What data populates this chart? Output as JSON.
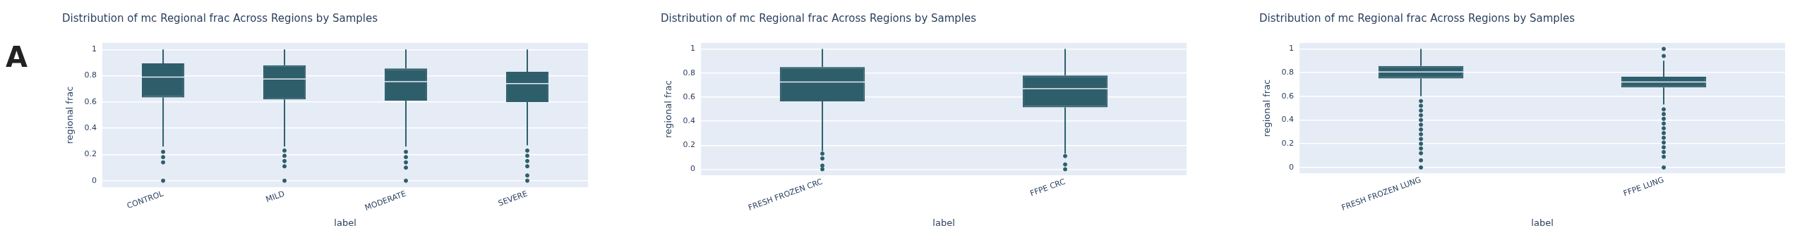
{
  "chart_data": [
    {
      "type": "box",
      "title": "Distribution of mc Regional frac Across Regions by Samples",
      "xlabel": "label",
      "ylabel": "regional frac",
      "annotations": [
        "A"
      ],
      "color": "#2f5e6b",
      "grid": "y",
      "ylim": [
        -0.05,
        1.05
      ],
      "yticks": [
        0,
        0.2,
        0.4,
        0.6,
        0.8,
        1
      ],
      "categories": [
        "CONTROL",
        "MILD",
        "MODERATE",
        "SEVERE"
      ],
      "boxes": [
        {
          "low": 0.26,
          "q1": 0.635,
          "median": 0.79,
          "q3": 0.895,
          "high": 1,
          "outliers": [
            0.22,
            0.18,
            0.14,
            0
          ]
        },
        {
          "low": 0.26,
          "q1": 0.62,
          "median": 0.775,
          "q3": 0.88,
          "high": 1,
          "outliers": [
            0.23,
            0.19,
            0.15,
            0.11,
            0
          ]
        },
        {
          "low": 0.26,
          "q1": 0.61,
          "median": 0.755,
          "q3": 0.855,
          "high": 1,
          "outliers": [
            0.22,
            0.18,
            0.14,
            0.1,
            0
          ]
        },
        {
          "low": 0.27,
          "q1": 0.6,
          "median": 0.74,
          "q3": 0.83,
          "high": 1,
          "outliers": [
            0.23,
            0.19,
            0.15,
            0.11,
            0.04,
            0
          ]
        }
      ]
    },
    {
      "type": "box",
      "title": "Distribution of mc Regional frac Across Regions by Samples",
      "xlabel": "label",
      "ylabel": "regional frac",
      "color": "#2f5e6b",
      "grid": "y",
      "ylim": [
        -0.05,
        1.05
      ],
      "yticks": [
        0,
        0.2,
        0.4,
        0.6,
        0.8,
        1
      ],
      "categories": [
        "FRESH FROZEN CRC",
        "FFPE CRC"
      ],
      "boxes": [
        {
          "low": 0.15,
          "q1": 0.565,
          "median": 0.725,
          "q3": 0.85,
          "high": 1,
          "outliers": [
            0.13,
            0.09,
            0.03,
            0
          ]
        },
        {
          "low": 0.13,
          "q1": 0.515,
          "median": 0.67,
          "q3": 0.78,
          "high": 1,
          "outliers": [
            0.11,
            0.04,
            0
          ]
        }
      ]
    },
    {
      "type": "box",
      "title": "Distribution of mc Regional frac Across Regions by Samples",
      "xlabel": "label",
      "ylabel": "regional frac",
      "color": "#2f5e6b",
      "grid": "y",
      "ylim": [
        -0.05,
        1.05
      ],
      "yticks": [
        0,
        0.2,
        0.4,
        0.6,
        0.8,
        1
      ],
      "categories": [
        "FRESH FROZEN LUNG",
        "FFPE LUNG"
      ],
      "boxes": [
        {
          "low": 0.6,
          "q1": 0.75,
          "median": 0.805,
          "q3": 0.855,
          "high": 1,
          "outliers": [
            0.56,
            0.52,
            0.48,
            0.44,
            0.4,
            0.36,
            0.32,
            0.28,
            0.24,
            0.2,
            0.16,
            0.12,
            0.06,
            0
          ]
        },
        {
          "low": 0.53,
          "q1": 0.675,
          "median": 0.72,
          "q3": 0.765,
          "high": 0.9,
          "outliers": [
            0.94,
            1,
            0.49,
            0.45,
            0.41,
            0.37,
            0.33,
            0.29,
            0.25,
            0.21,
            0.17,
            0.13,
            0.09,
            0
          ]
        }
      ]
    }
  ]
}
